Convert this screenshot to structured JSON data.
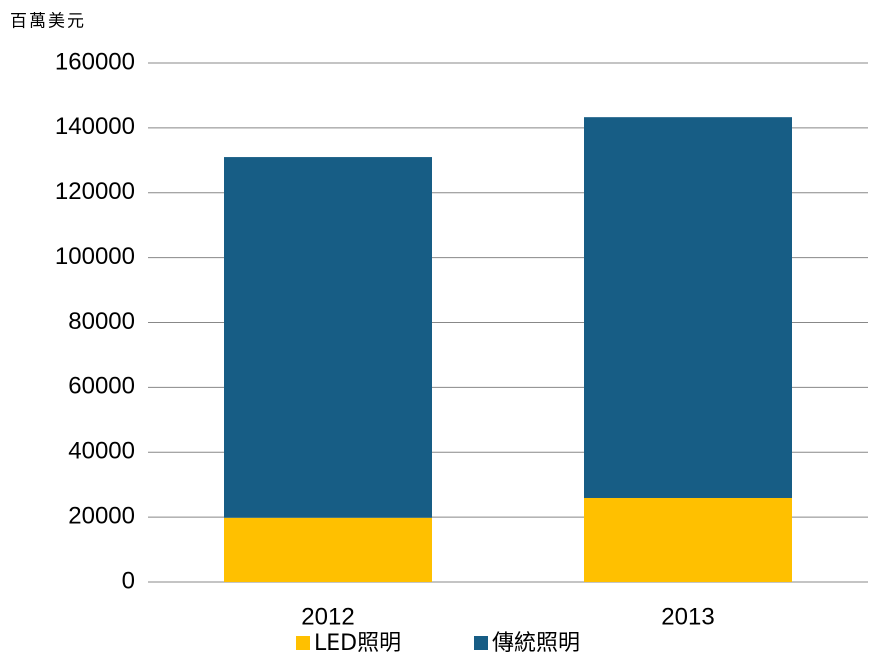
{
  "chart_data": {
    "type": "stacked_bar",
    "y_label": "百萬美元",
    "categories": [
      "2012",
      "2013"
    ],
    "series": [
      {
        "name": "LED照明",
        "color": "#ffc000",
        "values": [
          19800,
          25900
        ]
      },
      {
        "name": "傳統照明",
        "color": "#175d85",
        "values": [
          111200,
          117400
        ]
      }
    ],
    "ylim": [
      0,
      160000
    ],
    "yticks": [
      0,
      20000,
      40000,
      60000,
      80000,
      100000,
      120000,
      140000,
      160000
    ],
    "grid": true,
    "legend": "bottom"
  }
}
